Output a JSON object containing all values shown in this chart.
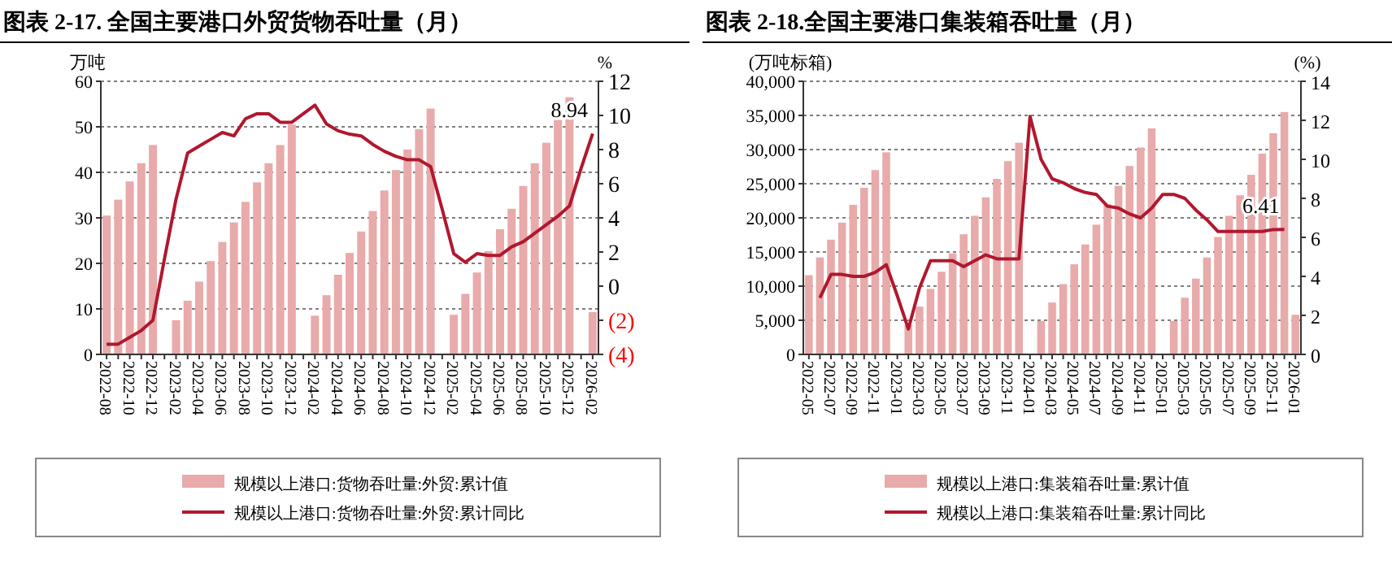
{
  "chart_data": [
    {
      "type": "bar",
      "title": "图表 2-17. 全国主要港口外贸货物吞吐量（月）",
      "ylabel": "万吨",
      "y2label": "%",
      "categories": [
        "2022-08",
        null,
        "2022-10",
        null,
        "2022-12",
        null,
        "2023-02",
        null,
        "2023-04",
        null,
        "2023-06",
        null,
        "2023-08",
        null,
        "2023-10",
        null,
        "2023-12",
        null,
        "2024-02",
        null,
        "2024-04",
        null,
        "2024-06",
        null,
        "2024-08",
        null,
        "2024-10",
        null,
        "2024-12",
        null,
        "2025-02",
        null,
        "2025-04",
        null,
        "2025-06",
        null,
        "2025-08",
        null,
        "2025-10",
        null,
        "2025-12",
        null,
        "2026-02"
      ],
      "series": [
        {
          "name": "规模以上港口:货物吞吐量:外贸:累计值",
          "color": "#e8aaaa",
          "values": [
            30.5,
            34,
            38,
            42,
            46,
            null,
            7.5,
            11.8,
            16,
            20.5,
            24.7,
            29,
            33.5,
            37.8,
            42,
            46,
            50.5,
            null,
            8.5,
            13,
            17.5,
            22.3,
            27,
            31.5,
            36,
            40.5,
            45,
            49.5,
            54,
            null,
            8.7,
            13.3,
            18,
            22.7,
            27.5,
            32,
            37,
            42,
            46.5,
            51.5,
            56.5,
            null,
            9.3
          ]
        },
        {
          "type": "line",
          "axis": "y2",
          "name": "规模以上港口:货物吞吐量:外贸:累计同比",
          "color": "#b0182e",
          "values": [
            -3.4,
            -3.4,
            -3.0,
            -2.6,
            -2.0,
            1.6,
            5.1,
            7.8,
            8.2,
            8.6,
            9.0,
            8.8,
            9.8,
            10.1,
            10.1,
            9.6,
            9.6,
            10.1,
            10.6,
            9.5,
            9.1,
            8.9,
            8.8,
            8.3,
            7.9,
            7.6,
            7.4,
            7.4,
            7.0,
            4.5,
            1.9,
            1.4,
            1.9,
            1.8,
            1.8,
            2.3,
            2.6,
            3.1,
            3.6,
            4.1,
            4.7,
            6.9,
            8.94
          ],
          "value_labels": [
            null,
            null,
            null,
            null,
            null,
            null,
            null,
            null,
            null,
            null,
            null,
            null,
            null,
            null,
            null,
            null,
            null,
            null,
            null,
            null,
            null,
            null,
            null,
            null,
            null,
            null,
            null,
            null,
            null,
            null,
            null,
            null,
            null,
            null,
            null,
            null,
            null,
            null,
            null,
            null,
            null,
            null,
            "8.94"
          ]
        }
      ],
      "ylim": [
        0,
        60
      ],
      "yticks": [
        0,
        10,
        20,
        30,
        40,
        50,
        60
      ],
      "y2lim": [
        -4,
        12
      ],
      "y2ticks": [
        {
          "value": -4,
          "label": "(4)"
        },
        {
          "value": -2,
          "label": "(2)"
        },
        0,
        2,
        4,
        6,
        8,
        10,
        12
      ],
      "grid": "y",
      "legend": "bottom"
    },
    {
      "type": "bar",
      "title": "图表 2-18.全国主要港口集装箱吞吐量（月）",
      "ylabel": "(万吨标箱)",
      "y2label": "(%)",
      "categories": [
        "2022-05",
        null,
        "2022-07",
        null,
        "2022-09",
        null,
        "2022-11",
        null,
        "2023-01",
        null,
        "2023-03",
        null,
        "2023-05",
        null,
        "2023-07",
        null,
        "2023-09",
        null,
        "2023-11",
        null,
        "2024-01",
        null,
        "2024-03",
        null,
        "2024-05",
        null,
        "2024-07",
        null,
        "2024-09",
        null,
        "2024-11",
        null,
        "2025-01",
        null,
        "2025-03",
        null,
        "2025-05",
        null,
        "2025-07",
        null,
        "2025-09",
        null,
        "2025-11",
        null,
        "2026-01"
      ],
      "series": [
        {
          "name": "规模以上港口:集装箱吞吐量:累计值",
          "color": "#e8aaaa",
          "values": [
            11600,
            14200,
            16800,
            19300,
            21900,
            24400,
            27000,
            29600,
            null,
            4300,
            7000,
            9600,
            12100,
            14800,
            17600,
            20300,
            23000,
            25700,
            28300,
            31000,
            null,
            4900,
            7600,
            10300,
            13200,
            16100,
            19000,
            22000,
            24700,
            27600,
            30300,
            33100,
            null,
            4900,
            8300,
            11100,
            14200,
            17200,
            20300,
            23300,
            26300,
            29400,
            32400,
            35500,
            5800
          ]
        },
        {
          "type": "line",
          "axis": "y2",
          "name": "规模以上港口:集装箱吞吐量:累计同比",
          "color": "#b0182e",
          "values": [
            null,
            2.9,
            4.1,
            4.1,
            4.0,
            4.0,
            4.2,
            4.6,
            3.0,
            1.3,
            3.4,
            4.8,
            4.8,
            4.8,
            4.5,
            4.8,
            5.1,
            4.9,
            4.9,
            4.9,
            12.2,
            10.0,
            9.0,
            8.8,
            8.5,
            8.3,
            8.2,
            7.6,
            7.5,
            7.2,
            7.0,
            7.5,
            8.2,
            8.2,
            8.0,
            7.4,
            6.9,
            6.3,
            6.3,
            6.3,
            6.3,
            6.3,
            6.4,
            6.41,
            null
          ],
          "value_labels": [
            null,
            null,
            null,
            null,
            null,
            null,
            null,
            null,
            null,
            null,
            null,
            null,
            null,
            null,
            null,
            null,
            null,
            null,
            null,
            null,
            null,
            null,
            null,
            null,
            null,
            null,
            null,
            null,
            null,
            null,
            null,
            null,
            null,
            null,
            null,
            null,
            null,
            null,
            null,
            null,
            null,
            null,
            null,
            "6.41",
            null
          ]
        }
      ],
      "ylim": [
        0,
        40000
      ],
      "yticks": [
        0,
        {
          "value": 5000,
          "label": "5,000"
        },
        {
          "value": 10000,
          "label": "10,000"
        },
        {
          "value": 15000,
          "label": "15,000"
        },
        {
          "value": 20000,
          "label": "20,000"
        },
        {
          "value": 25000,
          "label": "25,000"
        },
        {
          "value": 30000,
          "label": "30,000"
        },
        {
          "value": 35000,
          "label": "35,000"
        },
        {
          "value": 40000,
          "label": "40,000"
        }
      ],
      "y2lim": [
        0,
        14
      ],
      "y2ticks": [
        0,
        2,
        4,
        6,
        8,
        10,
        12,
        14
      ],
      "grid": "y",
      "legend": "bottom"
    }
  ]
}
